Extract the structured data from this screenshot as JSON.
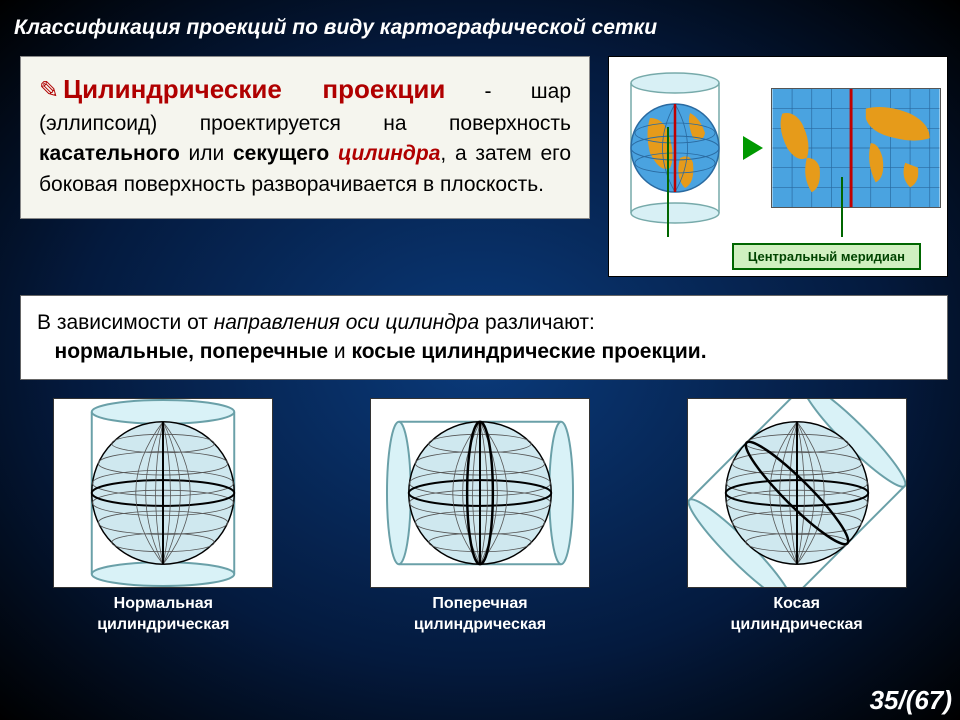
{
  "title": "Классификация проекций по виду картографической сетки",
  "definition": {
    "heading": "Цилиндрические проекции",
    "body_parts": {
      "p1": " - шар (эллипсоид) проектируется на поверхность ",
      "b1": "касательного",
      "p2": " или ",
      "b2": "секущего ",
      "i1": "цилиндра",
      "p3": ", а затем его боковая поверхность разворачивается в плоскость."
    }
  },
  "diagram": {
    "meridian_label": "Центральный меридиан",
    "colors": {
      "ocean": "#4aa3e0",
      "land": "#e69b1a",
      "grid": "#2a6aa0",
      "meridian": "#c00000",
      "cylinder_fill": "#d8f0f5",
      "cylinder_stroke": "#7aa"
    }
  },
  "mid_text": {
    "lead": "В зависимости от ",
    "italic": "направления оси цилиндра ",
    "after": "различают:",
    "bold": "нормальные, поперечные ",
    "and": "и ",
    "bold2": "косые цилиндрические проекции."
  },
  "projections": [
    {
      "caption1": "Нормальная",
      "caption2": "цилиндрическая",
      "rotation": 0
    },
    {
      "caption1": "Поперечная",
      "caption2": "цилиндрическая",
      "rotation": 90
    },
    {
      "caption1": "Косая",
      "caption2": "цилиндрическая",
      "rotation": 45
    }
  ],
  "page": {
    "current": "35",
    "total": "(67)"
  },
  "style": {
    "sphere_fill": "#cfe8ef",
    "sphere_stroke": "#000000",
    "grid_stroke": "#555555",
    "cyl_fill": "#d9f2f7",
    "cyl_stroke": "#6aa0a8",
    "highlight": "#000000"
  }
}
